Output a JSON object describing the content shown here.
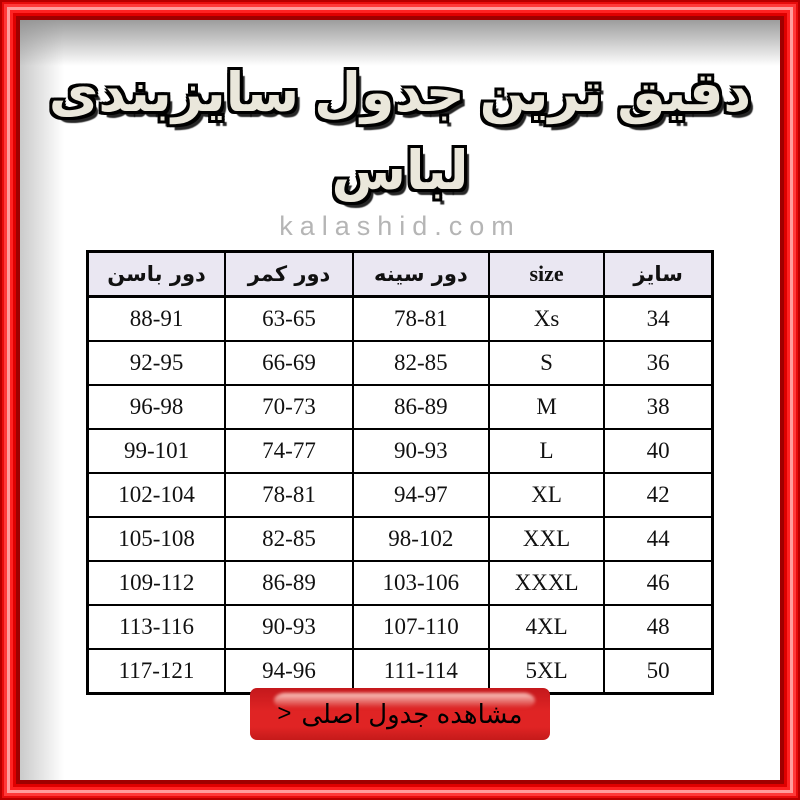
{
  "page": {
    "title": "دقیق ترین جدول سایزبندی لباس",
    "watermark": "kalashid.com"
  },
  "colors": {
    "frame_red": "#ff0000",
    "frame_highlight": "#ff9e9e",
    "frame_dark": "#a00000",
    "header_bg": "#eae7f2",
    "table_border": "#000000",
    "title_fill": "#eae7db",
    "watermark_gray": "#b5b5b5",
    "button_red": "#e02424",
    "button_text": "#000000"
  },
  "table": {
    "columns": [
      {
        "key": "hip",
        "label": "دور باسن"
      },
      {
        "key": "waist",
        "label": "دور کمر"
      },
      {
        "key": "chest",
        "label": "دور سینه"
      },
      {
        "key": "size_en",
        "label": "size"
      },
      {
        "key": "size_fa",
        "label": "سایز"
      }
    ],
    "rows": [
      [
        "88-91",
        "63-65",
        "78-81",
        "Xs",
        "34"
      ],
      [
        "92-95",
        "66-69",
        "82-85",
        "S",
        "36"
      ],
      [
        "96-98",
        "70-73",
        "86-89",
        "M",
        "38"
      ],
      [
        "99-101",
        "74-77",
        "90-93",
        "L",
        "40"
      ],
      [
        "102-104",
        "78-81",
        "94-97",
        "XL",
        "42"
      ],
      [
        "105-108",
        "82-85",
        "98-102",
        "XXL",
        "44"
      ],
      [
        "109-112",
        "86-89",
        "103-106",
        "XXXL",
        "46"
      ],
      [
        "113-116",
        "90-93",
        "107-110",
        "4XL",
        "48"
      ],
      [
        "117-121",
        "94-96",
        "111-114",
        "5XL",
        "50"
      ]
    ]
  },
  "button": {
    "arrow": ">",
    "label": "مشاهده جدول اصلی"
  },
  "chart_data": {
    "type": "table",
    "title": "دقیق ترین جدول سایزبندی لباس",
    "columns": [
      "دور باسن",
      "دور کمر",
      "دور سینه",
      "size",
      "سایز"
    ],
    "rows": [
      [
        "88-91",
        "63-65",
        "78-81",
        "Xs",
        "34"
      ],
      [
        "92-95",
        "66-69",
        "82-85",
        "S",
        "36"
      ],
      [
        "96-98",
        "70-73",
        "86-89",
        "M",
        "38"
      ],
      [
        "99-101",
        "74-77",
        "90-93",
        "L",
        "40"
      ],
      [
        "102-104",
        "78-81",
        "94-97",
        "XL",
        "42"
      ],
      [
        "105-108",
        "82-85",
        "98-102",
        "XXL",
        "44"
      ],
      [
        "109-112",
        "86-89",
        "103-106",
        "XXXL",
        "46"
      ],
      [
        "113-116",
        "90-93",
        "107-110",
        "4XL",
        "48"
      ],
      [
        "117-121",
        "94-96",
        "111-114",
        "5XL",
        "50"
      ]
    ]
  }
}
